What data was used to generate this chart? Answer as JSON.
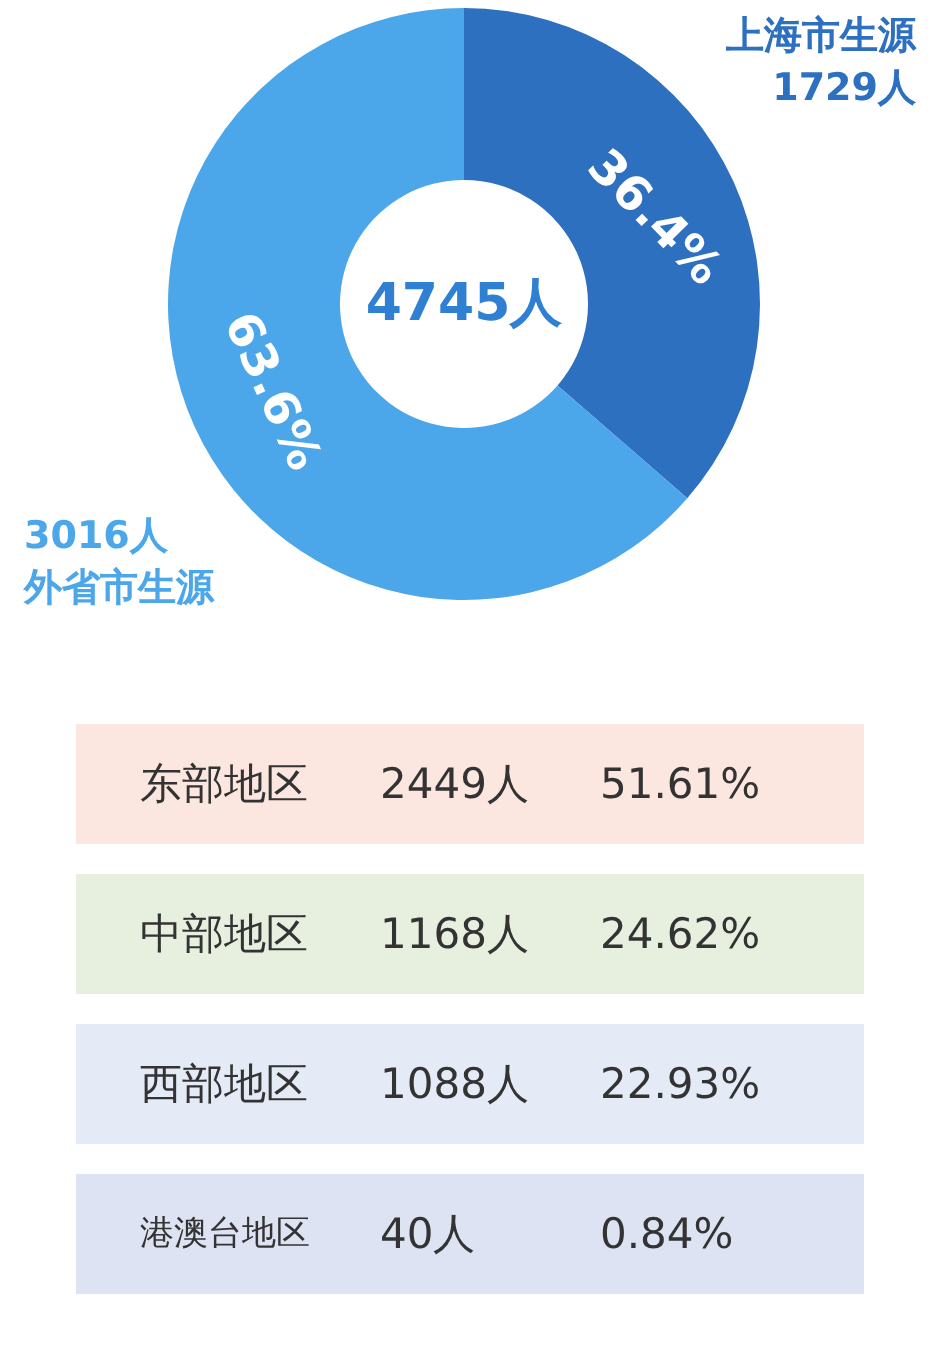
{
  "chart_data": [
    {
      "type": "donut",
      "categories": [
        "上海市生源",
        "外省市生源"
      ],
      "values": [
        36.4,
        63.6
      ],
      "value_labels": [
        "36.4%",
        "63.6%"
      ],
      "colors": [
        "#2e70c0",
        "#4ba6ea"
      ],
      "annotations": [
        "4745人",
        "1729人",
        "3016人"
      ]
    },
    {
      "type": "other",
      "categories": [
        "东部地区",
        "中部地区",
        "西部地区",
        "港澳台地区"
      ],
      "series": [
        {
          "colors": [
            "#fbe7df",
            "#e7f0df",
            "#e4ebf7",
            "#dde3f2"
          ],
          "values": [
            2449,
            1168,
            1088,
            40
          ],
          "value_labels": [
            "2449人",
            "1168人",
            "1088人",
            "40人"
          ]
        },
        {
          "values": [
            51.61,
            24.62,
            22.93,
            0.84
          ],
          "value_labels": [
            "51.61%",
            "24.62%",
            "22.93%",
            "0.84%"
          ]
        }
      ]
    }
  ]
}
